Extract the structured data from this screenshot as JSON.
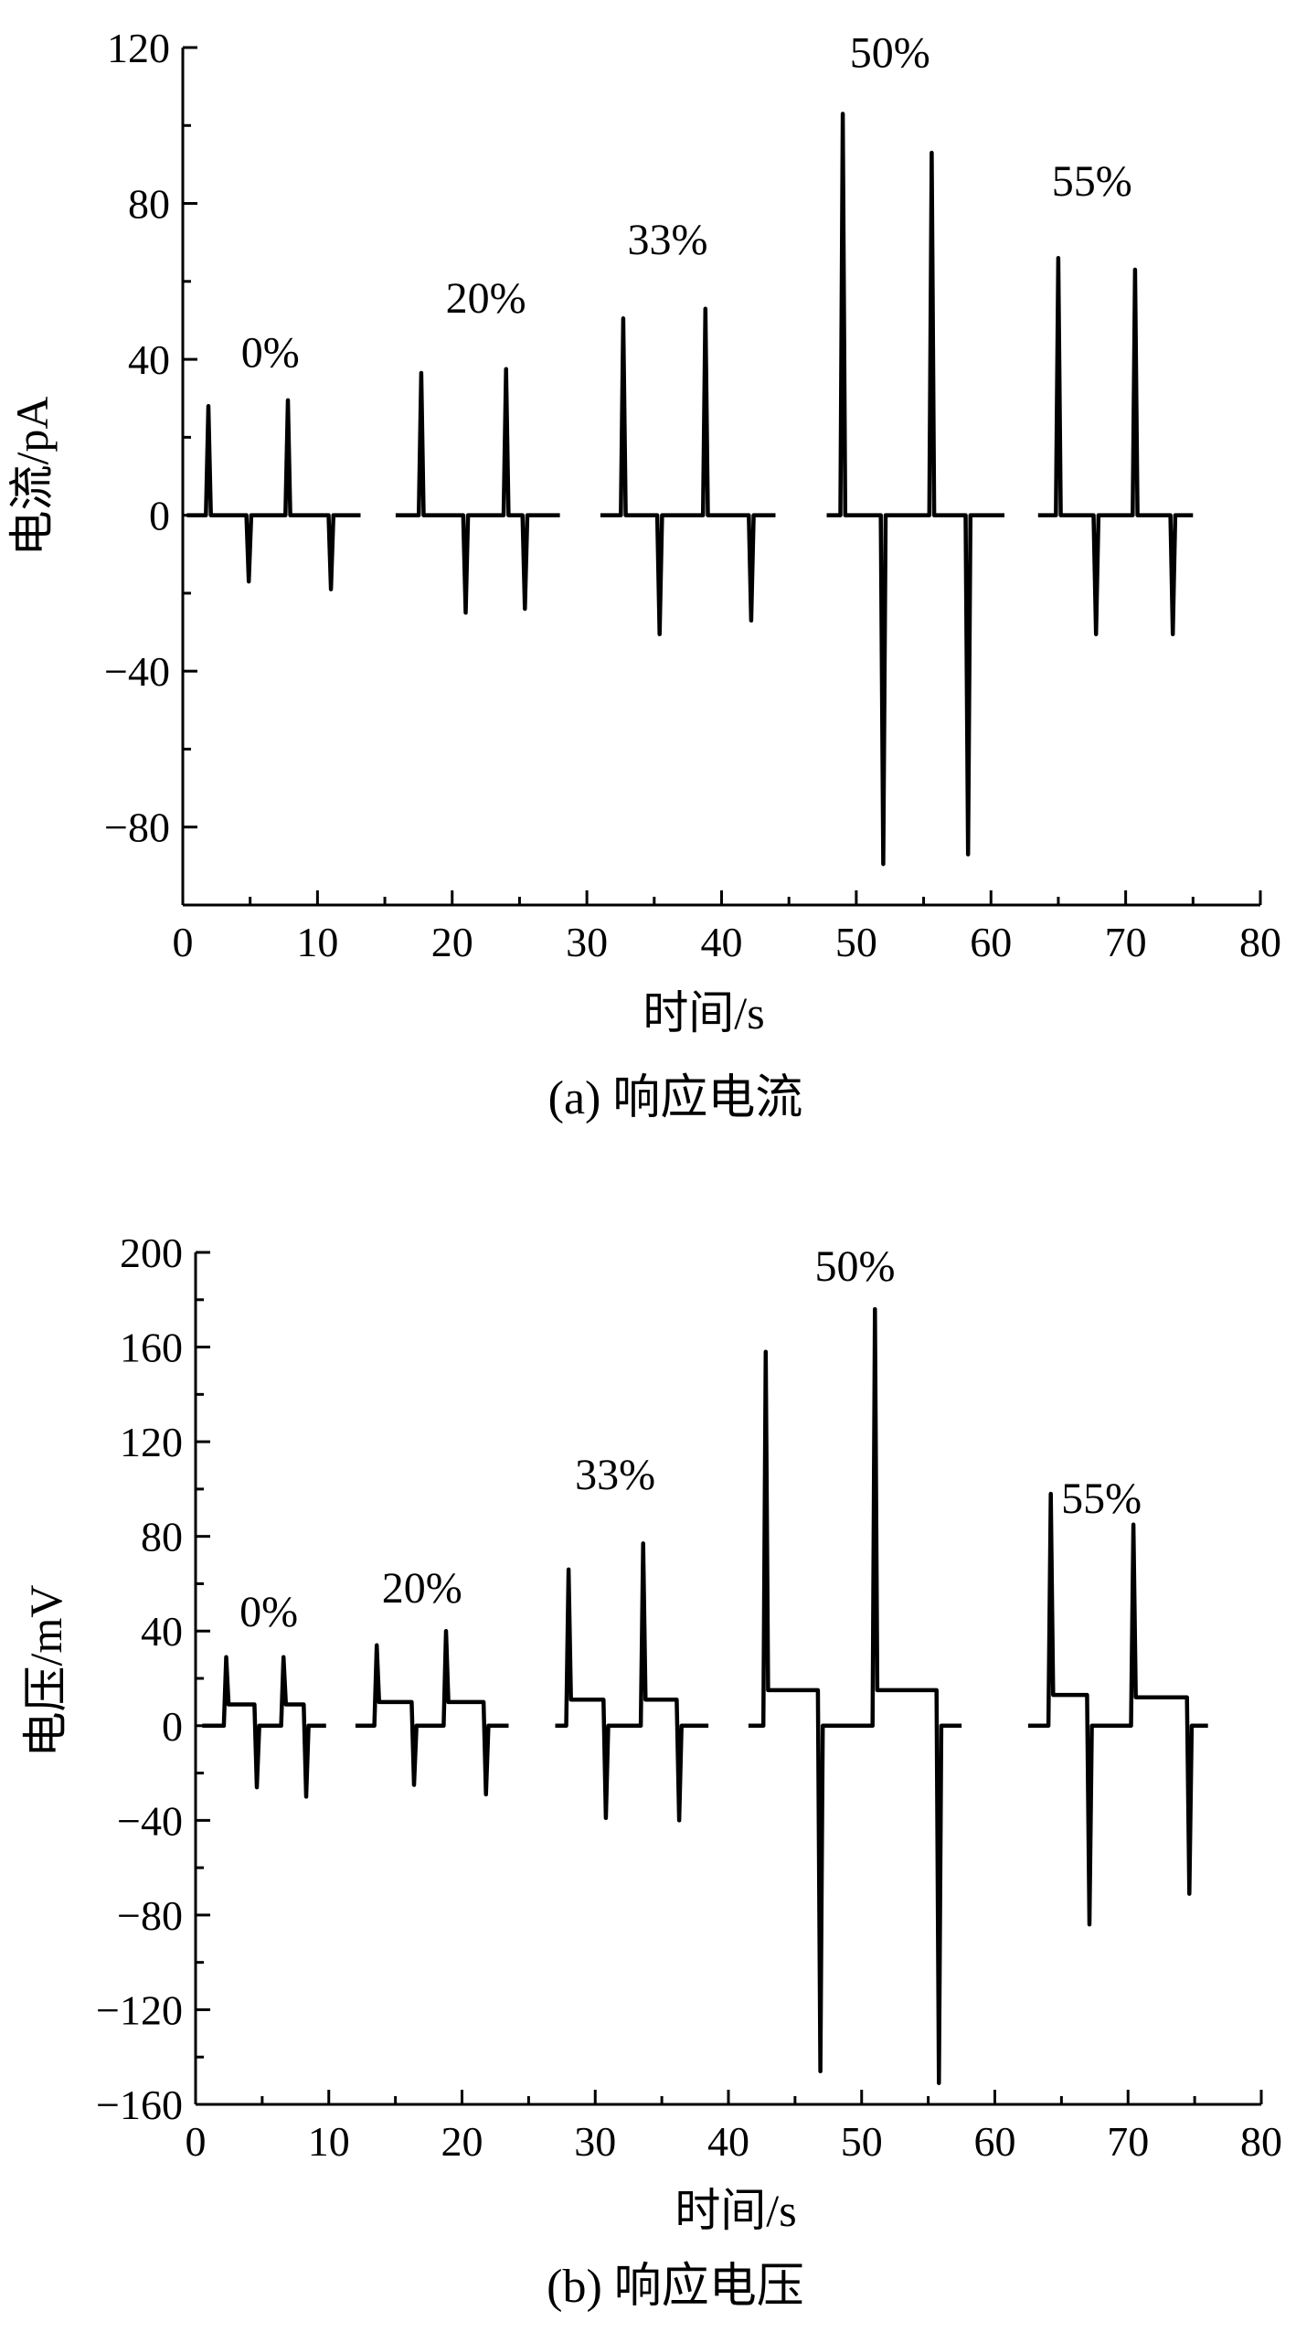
{
  "chart_data": [
    {
      "type": "line",
      "caption": "(a) 响应电流",
      "xlabel": "时间/s",
      "ylabel": "电流/pA",
      "xlim": [
        0,
        80
      ],
      "ylim": [
        -100,
        120
      ],
      "xticks": [
        0,
        10,
        20,
        30,
        40,
        50,
        60,
        70,
        80
      ],
      "yticks": [
        -80,
        -40,
        0,
        40,
        80,
        120
      ],
      "grid": false,
      "groups": [
        {
          "label": "0%",
          "label_pos": [
            6.5,
            38
          ],
          "range": [
            0.3,
            13.2
          ],
          "events": [
            [
              1.9,
              28
            ],
            [
              4.9,
              -17
            ],
            [
              7.8,
              29.5
            ],
            [
              11.0,
              -19
            ]
          ]
        },
        {
          "label": "20%",
          "label_pos": [
            22.5,
            52
          ],
          "range": [
            15.8,
            28.0
          ],
          "events": [
            [
              17.7,
              36.5
            ],
            [
              21.0,
              -25
            ],
            [
              24.0,
              37.5
            ],
            [
              25.4,
              -24
            ]
          ]
        },
        {
          "label": "33%",
          "label_pos": [
            36.0,
            67
          ],
          "range": [
            31.0,
            44.0
          ],
          "events": [
            [
              32.7,
              50.5
            ],
            [
              35.4,
              -30.5
            ],
            [
              38.8,
              53
            ],
            [
              42.2,
              -27
            ]
          ]
        },
        {
          "label": "50%",
          "label_pos": [
            52.5,
            115
          ],
          "range": [
            47.8,
            61.0
          ],
          "events": [
            [
              49.0,
              103
            ],
            [
              52.0,
              -89.5
            ],
            [
              55.6,
              93
            ],
            [
              58.3,
              -87
            ]
          ]
        },
        {
          "label": "55%",
          "label_pos": [
            67.5,
            82
          ],
          "range": [
            63.5,
            75.0
          ],
          "events": [
            [
              65.0,
              66
            ],
            [
              67.8,
              -30.5
            ],
            [
              70.7,
              63
            ],
            [
              73.5,
              -30.5
            ]
          ]
        }
      ]
    },
    {
      "type": "line",
      "caption": "(b) 响应电压",
      "xlabel": "时间/s",
      "ylabel": "电压/mV",
      "xlim": [
        0,
        80
      ],
      "ylim": [
        -160,
        200
      ],
      "xticks": [
        0,
        10,
        20,
        30,
        40,
        50,
        60,
        70,
        80
      ],
      "yticks": [
        -160,
        -120,
        -80,
        -40,
        0,
        40,
        80,
        120,
        160,
        200
      ],
      "grid": false,
      "groups": [
        {
          "label": "0%",
          "label_pos": [
            5.5,
            42
          ],
          "range": [
            0.5,
            9.8
          ],
          "events": [
            [
              2.3,
              29,
              9,
              "up"
            ],
            [
              4.6,
              -26,
              9,
              "down"
            ],
            [
              6.6,
              29,
              9,
              "up"
            ],
            [
              8.3,
              -30,
              9,
              "down"
            ]
          ]
        },
        {
          "label": "20%",
          "label_pos": [
            17.0,
            52
          ],
          "range": [
            12.0,
            23.5
          ],
          "events": [
            [
              13.6,
              34,
              10,
              "up"
            ],
            [
              16.4,
              -25,
              10,
              "down"
            ],
            [
              18.8,
              40,
              10,
              "up"
            ],
            [
              21.8,
              -29,
              10,
              "down"
            ]
          ]
        },
        {
          "label": "33%",
          "label_pos": [
            31.5,
            100
          ],
          "range": [
            27.0,
            38.5
          ],
          "events": [
            [
              28.0,
              66,
              11,
              "up"
            ],
            [
              30.8,
              -39,
              11,
              "down"
            ],
            [
              33.6,
              77,
              11,
              "up"
            ],
            [
              36.3,
              -40,
              11,
              "down"
            ]
          ]
        },
        {
          "label": "50%",
          "label_pos": [
            49.5,
            188
          ],
          "range": [
            41.5,
            57.5
          ],
          "events": [
            [
              42.8,
              158,
              15,
              "up"
            ],
            [
              46.9,
              -146,
              15,
              "down"
            ],
            [
              51.0,
              176,
              15,
              "up"
            ],
            [
              55.8,
              -151,
              15,
              "down"
            ]
          ]
        },
        {
          "label": "55%",
          "label_pos": [
            68.0,
            90
          ],
          "range": [
            62.5,
            76.0
          ],
          "events": [
            [
              64.2,
              98,
              13,
              "up"
            ],
            [
              67.1,
              -84,
              13,
              "down"
            ],
            [
              70.4,
              85,
              12,
              "up"
            ],
            [
              74.6,
              -71,
              12,
              "down"
            ]
          ]
        }
      ]
    }
  ]
}
